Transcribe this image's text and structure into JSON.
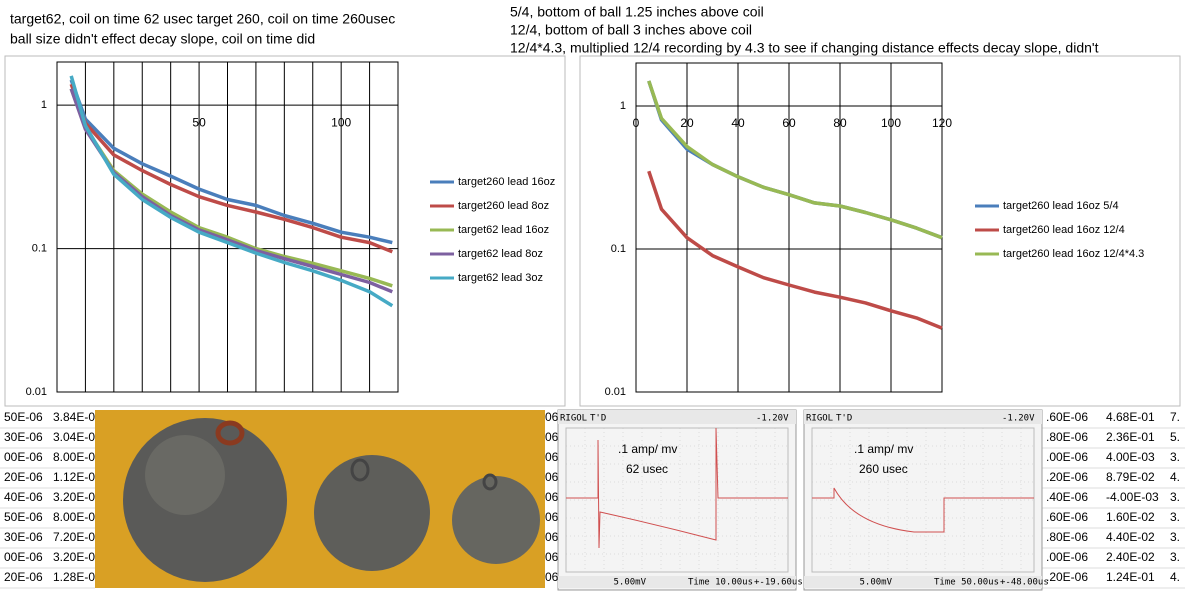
{
  "notes": {
    "left": [
      "target62, coil on time 62 usec     target 260, coil on time 260usec",
      "ball size didn't effect decay slope, coil on time did"
    ],
    "right": [
      "5/4, bottom of ball 1.25 inches above coil",
      "12/4, bottom of ball 3 inches above coil",
      "12/4*4.3, multiplied 12/4 recording by 4.3 to see if changing distance effects decay slope, didn't"
    ]
  },
  "chart_data": [
    {
      "type": "line",
      "log_y": true,
      "xlim": [
        0,
        120
      ],
      "ylim": [
        0.01,
        2
      ],
      "xticks": [
        50,
        100
      ],
      "xgrid": [
        0,
        10,
        20,
        30,
        40,
        50,
        60,
        70,
        80,
        90,
        100,
        110,
        120
      ],
      "yticks": [
        0.01,
        0.1,
        1
      ],
      "grid": true,
      "x": [
        5,
        10,
        20,
        30,
        40,
        50,
        60,
        70,
        80,
        90,
        100,
        110,
        118
      ],
      "series": [
        {
          "name": "target260 lead 16oz",
          "color": "#4a7ebb",
          "values": [
            1.5,
            0.8,
            0.5,
            0.39,
            0.32,
            0.26,
            0.22,
            0.2,
            0.17,
            0.15,
            0.13,
            0.12,
            0.11
          ]
        },
        {
          "name": "target260 lead 8oz",
          "color": "#be4b48",
          "values": [
            1.4,
            0.75,
            0.45,
            0.35,
            0.28,
            0.23,
            0.2,
            0.18,
            0.16,
            0.14,
            0.12,
            0.11,
            0.095
          ]
        },
        {
          "name": "target62 lead 16oz",
          "color": "#98b954",
          "values": [
            1.3,
            0.7,
            0.35,
            0.24,
            0.18,
            0.14,
            0.12,
            0.1,
            0.088,
            0.079,
            0.07,
            0.062,
            0.055
          ]
        },
        {
          "name": "target62 lead 8oz",
          "color": "#7d60a0",
          "values": [
            1.3,
            0.68,
            0.34,
            0.23,
            0.17,
            0.135,
            0.115,
            0.097,
            0.085,
            0.075,
            0.066,
            0.058,
            0.05
          ]
        },
        {
          "name": "target62 lead 3oz",
          "color": "#46aac5",
          "values": [
            1.6,
            0.72,
            0.33,
            0.22,
            0.165,
            0.13,
            0.11,
            0.093,
            0.08,
            0.07,
            0.06,
            0.05,
            0.04
          ]
        }
      ]
    },
    {
      "type": "line",
      "log_y": true,
      "xlim": [
        0,
        120
      ],
      "ylim": [
        0.01,
        2
      ],
      "xticks": [
        0,
        20,
        40,
        60,
        80,
        100,
        120
      ],
      "yticks": [
        0.01,
        0.1,
        1
      ],
      "grid": true,
      "x": [
        5,
        10,
        20,
        30,
        40,
        50,
        60,
        70,
        80,
        90,
        100,
        110,
        120
      ],
      "series": [
        {
          "name": "target260 lead 16oz 5/4",
          "color": "#4a7ebb",
          "values": [
            1.5,
            0.8,
            0.5,
            0.39,
            0.32,
            0.27,
            0.24,
            0.21,
            0.2,
            0.18,
            0.16,
            0.14,
            0.12
          ]
        },
        {
          "name": "target260 lead 16oz 12/4",
          "color": "#be4b48",
          "values": [
            0.35,
            0.19,
            0.12,
            0.09,
            0.075,
            0.063,
            0.056,
            0.05,
            0.046,
            0.042,
            0.037,
            0.033,
            0.028
          ]
        },
        {
          "name": "target260 lead 16oz 12/4*4.3",
          "color": "#98b954",
          "values": [
            1.5,
            0.82,
            0.52,
            0.39,
            0.32,
            0.27,
            0.24,
            0.21,
            0.2,
            0.18,
            0.16,
            0.14,
            0.12
          ]
        }
      ]
    }
  ],
  "cells": {
    "left": [
      [
        "50E-06",
        "3.84E-0"
      ],
      [
        "30E-06",
        "3.04E-0"
      ],
      [
        "00E-06",
        "8.00E-0"
      ],
      [
        "20E-06",
        "1.12E-0"
      ],
      [
        "40E-06",
        "3.20E-0"
      ],
      [
        "50E-06",
        "8.00E-0"
      ],
      [
        "30E-06",
        "7.20E-0"
      ],
      [
        "00E-06",
        "3.20E-0"
      ],
      [
        "20E-06",
        "1.28E-0"
      ]
    ],
    "middle": [
      "06",
      "06",
      "06",
      "06",
      "06",
      "06",
      "06",
      "06",
      "06"
    ],
    "right": [
      [
        ".60E-06",
        "4.68E-01",
        "7."
      ],
      [
        ".80E-06",
        "2.36E-01",
        "5."
      ],
      [
        ".00E-06",
        "4.00E-03",
        "3."
      ],
      [
        ".20E-06",
        "8.79E-02",
        "4."
      ],
      [
        ".40E-06",
        "-4.00E-03",
        "3."
      ],
      [
        ".60E-06",
        "1.60E-02",
        "3."
      ],
      [
        ".80E-06",
        "4.40E-02",
        "3."
      ],
      [
        ".00E-06",
        "2.40E-02",
        "3."
      ],
      [
        ".20E-06",
        "1.24E-01",
        "4."
      ]
    ]
  },
  "scopes": [
    {
      "brand": "RIGOL",
      "mode": "T'D",
      "trigger": "-1.20V",
      "label": ".1 amp/ mv",
      "time_on": "62 usec",
      "volts": "5.00mV",
      "timebase": "Time 10.00us",
      "offset": "+-19.60us"
    },
    {
      "brand": "RIGOL",
      "mode": "T'D",
      "trigger": "-1.20V",
      "label": ".1 amp/ mv",
      "time_on": "260 usec",
      "volts": "5.00mV",
      "timebase": "Time 50.00us",
      "offset": "+-48.00us"
    }
  ]
}
